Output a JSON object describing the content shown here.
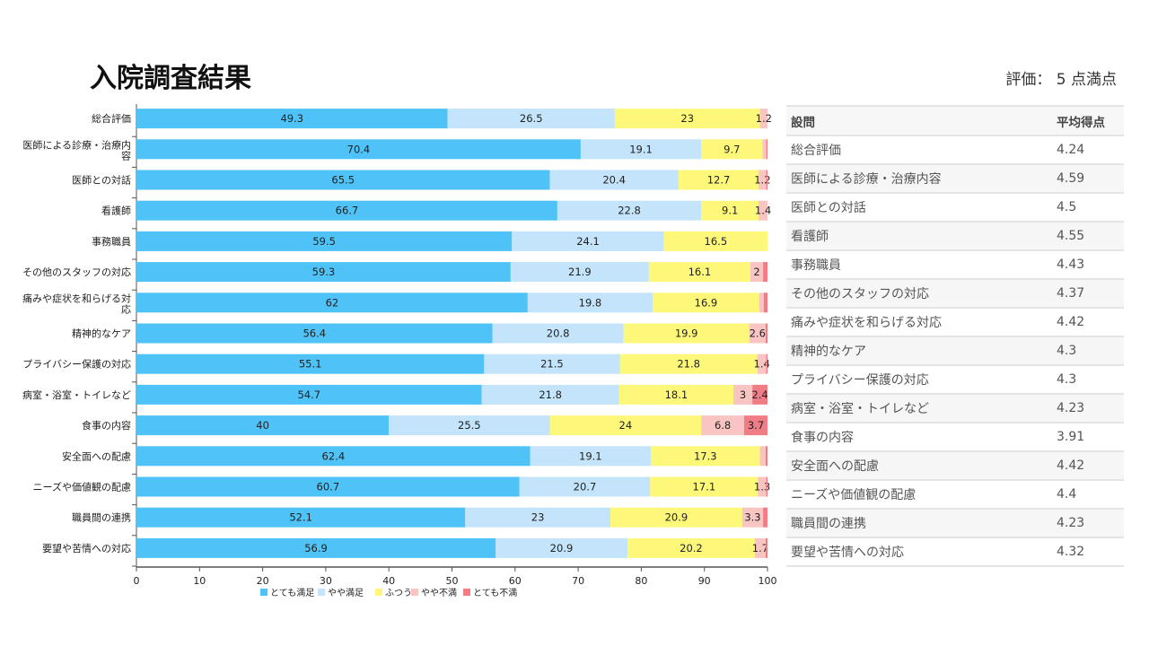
{
  "page": {
    "title": "入院調査結果",
    "subtitle": "評価： 5 点満点"
  },
  "chart_data": {
    "type": "bar",
    "orientation": "horizontal-stacked-100",
    "categories": [
      "総合評価",
      "医師による診療・治療内容",
      "医師との対話",
      "看護師",
      "事務職員",
      "その他のスタッフの対応",
      "痛みや症状を和らげる対応",
      "精神的なケア",
      "プライバシー保護の対応",
      "病室・浴室・トイレなど",
      "食事の内容",
      "安全面への配慮",
      "ニーズや価値観の配慮",
      "職員間の連携",
      "要望や苦情への対応"
    ],
    "category_lines": [
      [
        "総合評価"
      ],
      [
        "医師による診療・治療内",
        "容"
      ],
      [
        "医師との対話"
      ],
      [
        "看護師"
      ],
      [
        "事務職員"
      ],
      [
        "その他のスタッフの対応"
      ],
      [
        "痛みや症状を和らげる対",
        "応"
      ],
      [
        "精神的なケア"
      ],
      [
        "プライバシー保護の対応"
      ],
      [
        "病室・浴室・トイレなど"
      ],
      [
        "食事の内容"
      ],
      [
        "安全面への配慮"
      ],
      [
        "ニーズや価値観の配慮"
      ],
      [
        "職員間の連携"
      ],
      [
        "要望や苦情への対応"
      ]
    ],
    "series": [
      {
        "name": "とても満足",
        "color": "#4fc3f7",
        "values": [
          49.3,
          70.4,
          65.5,
          66.7,
          59.5,
          59.3,
          62,
          56.4,
          55.1,
          54.7,
          40,
          62.4,
          60.7,
          52.1,
          56.9
        ]
      },
      {
        "name": "やや満足",
        "color": "#c3e4fb",
        "values": [
          26.5,
          19.1,
          20.4,
          22.8,
          24.1,
          21.9,
          19.8,
          20.8,
          21.5,
          21.8,
          25.5,
          19.1,
          20.7,
          23,
          20.9
        ]
      },
      {
        "name": "ふつう",
        "color": "#fdf87a",
        "values": [
          23,
          9.7,
          12.7,
          9.1,
          16.5,
          16.1,
          16.9,
          19.9,
          21.8,
          18.1,
          24,
          17.3,
          17.1,
          20.9,
          20.2
        ]
      },
      {
        "name": "やや不満",
        "color": "#f8c5c3",
        "values": [
          1.2,
          0.6,
          1.2,
          1.4,
          0,
          2.0,
          0.7,
          2.6,
          1.4,
          3,
          6.8,
          0.9,
          1.3,
          3.3,
          1.7
        ]
      },
      {
        "name": "とても不満",
        "color": "#f07d86",
        "values": [
          0,
          0.2,
          0.2,
          0,
          0,
          0.7,
          0.6,
          0.3,
          0.2,
          2.4,
          3.7,
          0.3,
          0.2,
          0.7,
          0.3
        ]
      }
    ],
    "xlim": [
      0,
      100
    ],
    "xticks": [
      "0",
      "10",
      "20",
      "30",
      "40",
      "50",
      "60",
      "70",
      "80",
      "90",
      "100"
    ],
    "legend_position": "bottom",
    "grid": false
  },
  "table": {
    "headers": [
      "設問",
      "平均得点"
    ],
    "rows": [
      [
        "総合評価",
        "4.24"
      ],
      [
        "医師による診療・治療内容",
        "4.59"
      ],
      [
        "医師との対話",
        "4.5"
      ],
      [
        "看護師",
        "4.55"
      ],
      [
        "事務職員",
        "4.43"
      ],
      [
        "その他のスタッフの対応",
        "4.37"
      ],
      [
        "痛みや症状を和らげる対応",
        "4.42"
      ],
      [
        "精神的なケア",
        "4.3"
      ],
      [
        "プライバシー保護の対応",
        "4.3"
      ],
      [
        "病室・浴室・トイレなど",
        "4.23"
      ],
      [
        "食事の内容",
        "3.91"
      ],
      [
        "安全面への配慮",
        "4.42"
      ],
      [
        "ニーズや価値観の配慮",
        "4.4"
      ],
      [
        "職員間の連携",
        "4.23"
      ],
      [
        "要望や苦情への対応",
        "4.32"
      ]
    ]
  }
}
